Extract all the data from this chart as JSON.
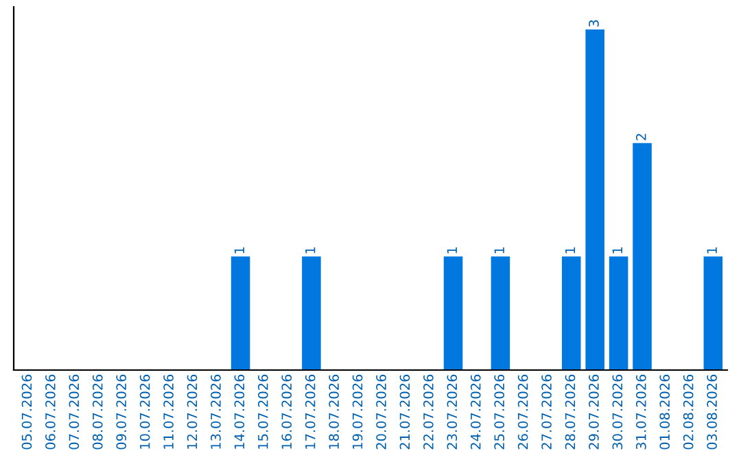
{
  "chart_data": {
    "type": "bar",
    "categories": [
      "05.07.2026",
      "06.07.2026",
      "07.07.2026",
      "08.07.2026",
      "09.07.2026",
      "10.07.2026",
      "11.07.2026",
      "12.07.2026",
      "13.07.2026",
      "14.07.2026",
      "15.07.2026",
      "16.07.2026",
      "17.07.2026",
      "18.07.2026",
      "19.07.2026",
      "20.07.2026",
      "21.07.2026",
      "22.07.2026",
      "23.07.2026",
      "24.07.2026",
      "25.07.2026",
      "26.07.2026",
      "27.07.2026",
      "28.07.2026",
      "29.07.2026",
      "30.07.2026",
      "31.07.2026",
      "01.08.2026",
      "02.08.2026",
      "03.08.2026"
    ],
    "values": [
      0,
      0,
      0,
      0,
      0,
      0,
      0,
      0,
      0,
      1,
      0,
      0,
      1,
      0,
      0,
      0,
      0,
      0,
      1,
      0,
      1,
      0,
      0,
      1,
      3,
      1,
      2,
      0,
      0,
      1
    ],
    "value_labels": [
      null,
      null,
      null,
      null,
      null,
      null,
      null,
      null,
      null,
      "1",
      null,
      null,
      "1",
      null,
      null,
      null,
      null,
      null,
      "1",
      null,
      "1",
      null,
      null,
      "1",
      "3",
      "1",
      "2",
      null,
      null,
      "1"
    ],
    "color": "#0078e0",
    "ylim": [
      0,
      3.2
    ],
    "tick_labels": "x",
    "grid": false,
    "legend": false
  }
}
